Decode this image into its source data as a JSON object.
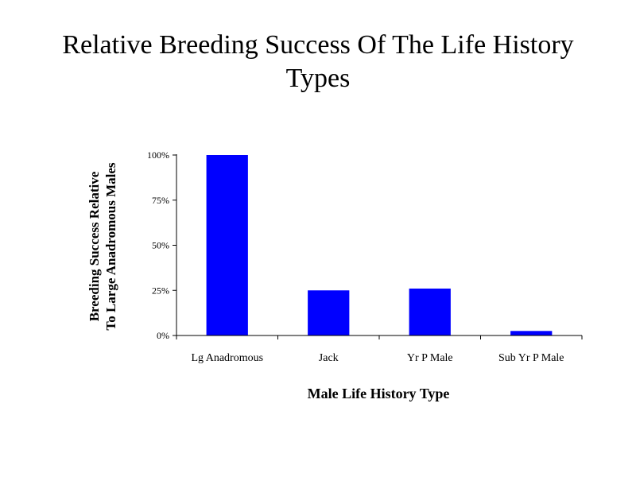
{
  "chart_data": {
    "type": "bar",
    "title_lines": [
      "Relative Breeding Success Of The Life History",
      "Types"
    ],
    "ylabel_lines": [
      "Breeding  Success Relative",
      "To Large Anadromous Males"
    ],
    "xlabel": "Male Life History Type",
    "categories": [
      "Lg Anadromous",
      "Jack",
      "Yr P Male",
      "Sub Yr P Male"
    ],
    "values": [
      100,
      25,
      26,
      2.5
    ],
    "ylim": [
      0,
      100
    ],
    "yticks": [
      0,
      25,
      50,
      75,
      100
    ],
    "ytick_labels": [
      "0%",
      "25%",
      "50%",
      "75%",
      "100%"
    ],
    "bar_color": "#0000FF",
    "grid": false,
    "legend": "none"
  }
}
